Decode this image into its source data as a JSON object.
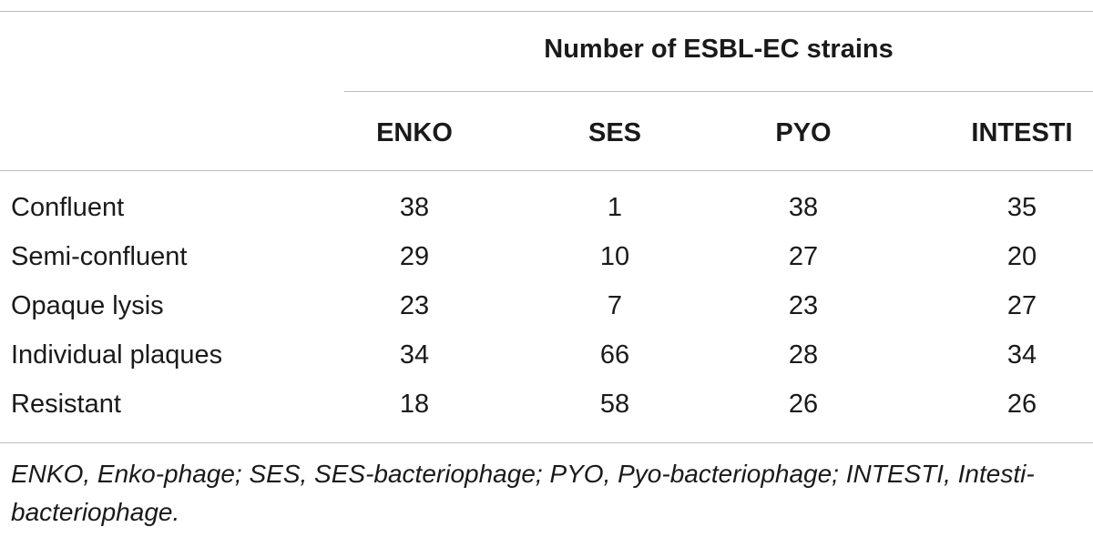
{
  "table": {
    "group_header": "Number of ESBL-EC strains",
    "columns": [
      "ENKO",
      "SES",
      "PYO",
      "INTESTI"
    ],
    "rows": [
      {
        "label": "Confluent",
        "values": [
          "38",
          "1",
          "38",
          "35"
        ]
      },
      {
        "label": "Semi-confluent",
        "values": [
          "29",
          "10",
          "27",
          "20"
        ]
      },
      {
        "label": "Opaque lysis",
        "values": [
          "23",
          "7",
          "23",
          "27"
        ]
      },
      {
        "label": "Individual plaques",
        "values": [
          "34",
          "66",
          "28",
          "34"
        ]
      },
      {
        "label": "Resistant",
        "values": [
          "18",
          "58",
          "26",
          "26"
        ]
      }
    ]
  },
  "footnote": "ENKO, Enko-phage; SES, SES-bacteriophage; PYO, Pyo-bacteriophage; INTESTI, Intesti-bacteriophage."
}
